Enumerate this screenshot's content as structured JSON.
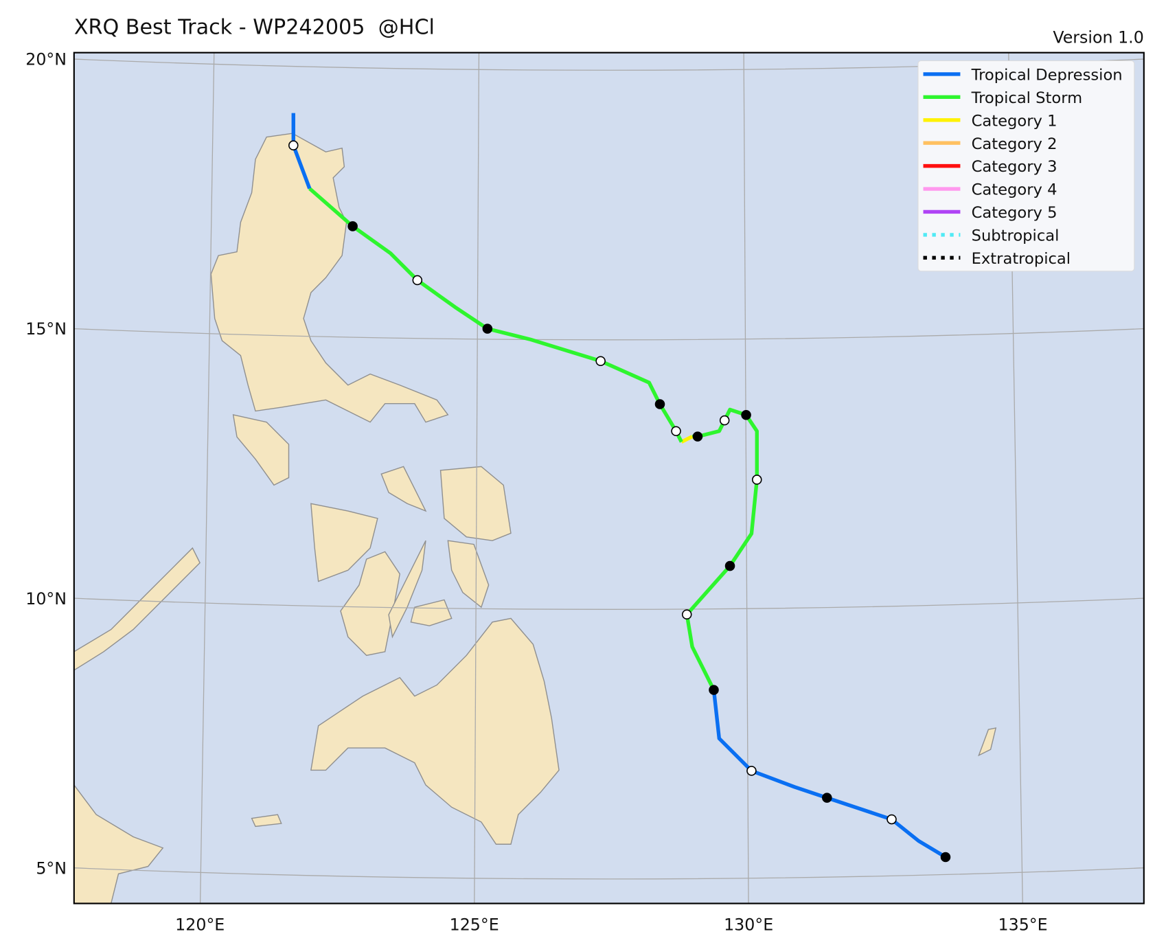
{
  "title": "XRQ Best Track - WP242005  @HCl",
  "version": "Version 1.0",
  "map": {
    "xlim": [
      117.53,
      137.38
    ],
    "ylim": [
      4.34,
      20.12
    ],
    "xticks": [
      {
        "value": 120,
        "label": "120°E"
      },
      {
        "value": 125,
        "label": "125°E"
      },
      {
        "value": 130,
        "label": "130°E"
      },
      {
        "value": 135,
        "label": "135°E"
      }
    ],
    "yticks": [
      {
        "value": 5,
        "label": "5°N"
      },
      {
        "value": 10,
        "label": "10°N"
      },
      {
        "value": 15,
        "label": "15°N"
      },
      {
        "value": 20,
        "label": "20°N"
      }
    ],
    "grid": true,
    "legend": [
      {
        "name": "Tropical Depression",
        "color": "#0a6ff2",
        "dotted": false
      },
      {
        "name": "Tropical Storm",
        "color": "#2ef52e",
        "dotted": false
      },
      {
        "name": "Category 1",
        "color": "#fff200",
        "dotted": false
      },
      {
        "name": "Category 2",
        "color": "#ffc060",
        "dotted": false
      },
      {
        "name": "Category 3",
        "color": "#ff1010",
        "dotted": false
      },
      {
        "name": "Category 4",
        "color": "#ff99ee",
        "dotted": false
      },
      {
        "name": "Category 5",
        "color": "#b044f5",
        "dotted": false
      },
      {
        "name": "Subtropical",
        "color": "#50eaf5",
        "dotted": true
      },
      {
        "name": "Extratropical",
        "color": "#000000",
        "dotted": true
      }
    ],
    "track": [
      {
        "color": "#0a6ff2",
        "lon": [
          133.7,
          133.2,
          132.7,
          131.5,
          130.9,
          130.1,
          129.5,
          129.4
        ],
        "lat": [
          5.2,
          5.5,
          5.9,
          6.3,
          6.5,
          6.8,
          7.4,
          8.3
        ]
      },
      {
        "color": "#2ef52e",
        "lon": [
          129.4,
          129.0,
          128.9,
          129.7,
          130.1,
          130.2,
          130.2,
          130.0,
          129.7,
          129.6,
          129.5,
          129.1,
          129.0
        ],
        "lat": [
          8.3,
          9.1,
          9.7,
          10.6,
          11.2,
          12.2,
          13.1,
          13.4,
          13.5,
          13.3,
          13.1,
          13.0,
          13.0
        ]
      },
      {
        "color": "#fff200",
        "lon": [
          129.0,
          128.8
        ],
        "lat": [
          13.0,
          12.9
        ]
      },
      {
        "color": "#2ef52e",
        "lon": [
          128.8,
          128.7,
          128.4,
          128.2,
          127.3,
          126.0,
          125.2,
          124.6,
          123.9,
          123.4,
          122.7,
          121.9
        ],
        "lat": [
          12.9,
          13.1,
          13.6,
          14.0,
          14.4,
          14.8,
          15.0,
          15.4,
          15.9,
          16.4,
          16.9,
          17.6
        ]
      },
      {
        "color": "#0a6ff2",
        "lon": [
          121.9,
          121.6,
          121.6
        ],
        "lat": [
          17.6,
          18.4,
          19.0
        ]
      }
    ],
    "markers": [
      {
        "fill": "#000000",
        "lon": [
          133.7,
          131.5,
          129.4,
          129.7,
          130.0,
          129.1,
          128.4,
          125.2,
          122.7
        ],
        "lat": [
          5.2,
          6.3,
          8.3,
          10.6,
          13.4,
          13.0,
          13.6,
          15.0,
          16.9
        ]
      },
      {
        "fill": "#ffffff",
        "lon": [
          132.7,
          130.1,
          128.9,
          130.2,
          129.6,
          128.7,
          127.3,
          123.9,
          121.6
        ],
        "lat": [
          5.9,
          6.8,
          9.7,
          12.2,
          13.3,
          13.1,
          14.4,
          15.9,
          18.4
        ]
      }
    ]
  }
}
